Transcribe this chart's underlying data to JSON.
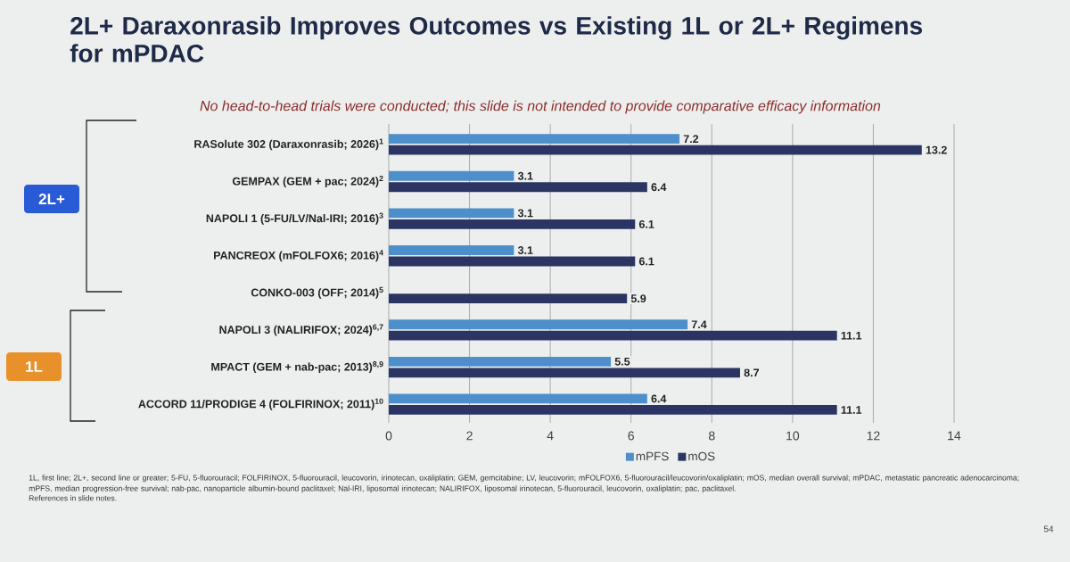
{
  "chart_data": {
    "type": "bar",
    "orientation": "horizontal",
    "title": "2L+ Daraxonrasib Improves Outcomes vs Existing 1L or 2L+ Regimens for mPDAC",
    "subtitle": "No head-to-head trials were conducted; this slide is not intended to provide comparative efficacy information",
    "categories": [
      "RASolute 302 (Daraxonrasib; 2026)$^{1}$",
      "GEMPAX (GEM + pac; 2024)$^{2}$",
      "NAPOLI 1 (5-FU/LV/Nal-IRI; 2016)$^{3}$",
      "PANCREOX (mFOLFOX6; 2016)$^{4}$",
      "CONKO-003 (OFF; 2014)$^{5}$",
      "NAPOLI 3 (NALIRIFOX; 2024)$^{6,7}$",
      "MPACT (GEM + nab-pac; 2013)$^{8,9}$",
      "ACCORD 11/PRODIGE 4 (FOLFIRINOX; 2011)$^{10}$"
    ],
    "series": [
      {
        "name": "mPFS",
        "color": "#4c8fcb",
        "values": [
          7.2,
          3.1,
          3.1,
          3.1,
          null,
          7.4,
          5.5,
          6.4
        ]
      },
      {
        "name": "mOS",
        "color": "#2b3462",
        "values": [
          13.2,
          6.4,
          6.1,
          6.1,
          5.9,
          11.1,
          8.7,
          11.1
        ]
      }
    ],
    "xlim": [
      0,
      14
    ],
    "xticks": [
      0,
      2,
      4,
      6,
      8,
      10,
      12,
      14
    ],
    "grid": "x",
    "legend": "bottom",
    "data_labels": true,
    "annotations": [
      "2L+",
      "1L",
      "1L, first line; 2L+, second line or greater; 5-FU, 5-fluorouracil; FOLFIRINOX, 5-fluorouracil, leucovorin, irinotecan, oxaliplatin; GEM, gemcitabine; LV, leucovorin; mFOLFOX6, 5-fluorouracil/leucovorin/oxaliplatin; mOS, median overall survival; mPDAC, metastatic pancreatic adenocarcinoma; mPFS, median progression-free survival; nab-pac, nanoparticle albumin-bound paclitaxel; Nal-IRI, liposomal irinotecan; NALIRIFOX, liposomal irinotecan, 5-fluorouracil, leucovorin, oxaliplatin; pac, paclitaxel.",
      "References in slide notes.",
      "54"
    ]
  }
}
